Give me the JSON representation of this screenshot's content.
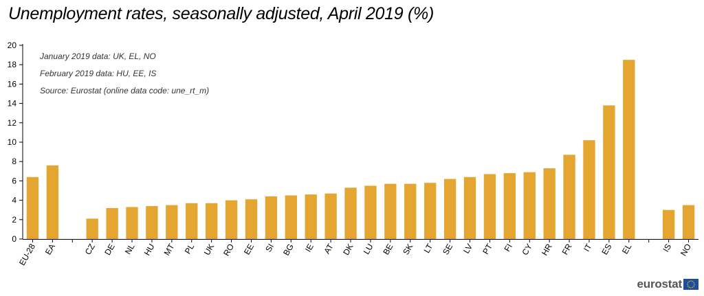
{
  "chart_data": {
    "type": "bar",
    "title": "Unemployment rates, seasonally adjusted, April 2019 (%)",
    "categories": [
      "EU-28",
      "EA",
      "",
      "CZ",
      "DE",
      "NL",
      "HU",
      "MT",
      "PL",
      "UK",
      "RO",
      "EE",
      "SI",
      "BG",
      "IE",
      "AT",
      "DK",
      "LU",
      "BE",
      "SK",
      "LT",
      "SE",
      "LV",
      "PT",
      "FI",
      "CY",
      "HR",
      "FR",
      "IT",
      "ES",
      "EL",
      "",
      "IS",
      "NO"
    ],
    "values": [
      6.4,
      7.6,
      null,
      2.1,
      3.2,
      3.3,
      3.4,
      3.5,
      3.7,
      3.7,
      4.0,
      4.1,
      4.4,
      4.5,
      4.6,
      4.7,
      5.3,
      5.5,
      5.7,
      5.7,
      5.8,
      6.2,
      6.4,
      6.7,
      6.8,
      6.9,
      7.3,
      8.7,
      10.2,
      13.8,
      18.5,
      null,
      3.0,
      3.5
    ],
    "ylim": [
      0,
      20
    ],
    "yticks": [
      0,
      2,
      4,
      6,
      8,
      10,
      12,
      14,
      16,
      18,
      20
    ],
    "xlabel": "",
    "ylabel": "",
    "bar_color": "#E4A631",
    "grid": false,
    "notes": [
      "January 2019 data: UK, EL, NO",
      "February 2019 data: HU, EE, IS",
      "Source: Eurostat (online data code: une_rt_m)"
    ]
  },
  "branding": {
    "logo_text": "eurostat",
    "logo_icon": "eu-flag-icon",
    "flag_color": "#1F4E9A",
    "star_color": "#F2C500"
  }
}
